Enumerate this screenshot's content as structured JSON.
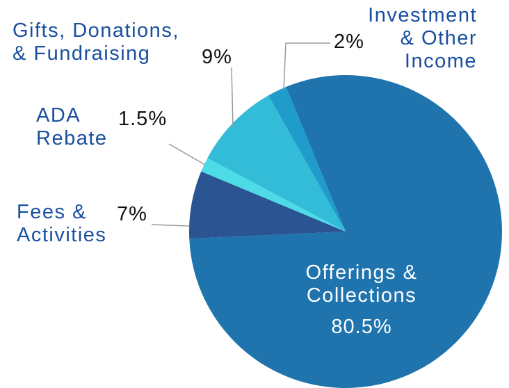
{
  "chart_data": {
    "type": "pie",
    "categories": [
      "Offerings &\nCollections",
      "Fees &\nActivities",
      "ADA\nRebate",
      "Gifts, Donations,\n& Fundraising",
      "Investment\n& Other\nIncome"
    ],
    "values": [
      80.5,
      7,
      1.5,
      9,
      2
    ],
    "value_labels": [
      "80.5%",
      "7%",
      "1.5%",
      "9%",
      "2%"
    ],
    "colors": [
      "#1f74ae",
      "#2a5592",
      "#4ddbe8",
      "#33bcd8",
      "#1f9bcc"
    ]
  }
}
